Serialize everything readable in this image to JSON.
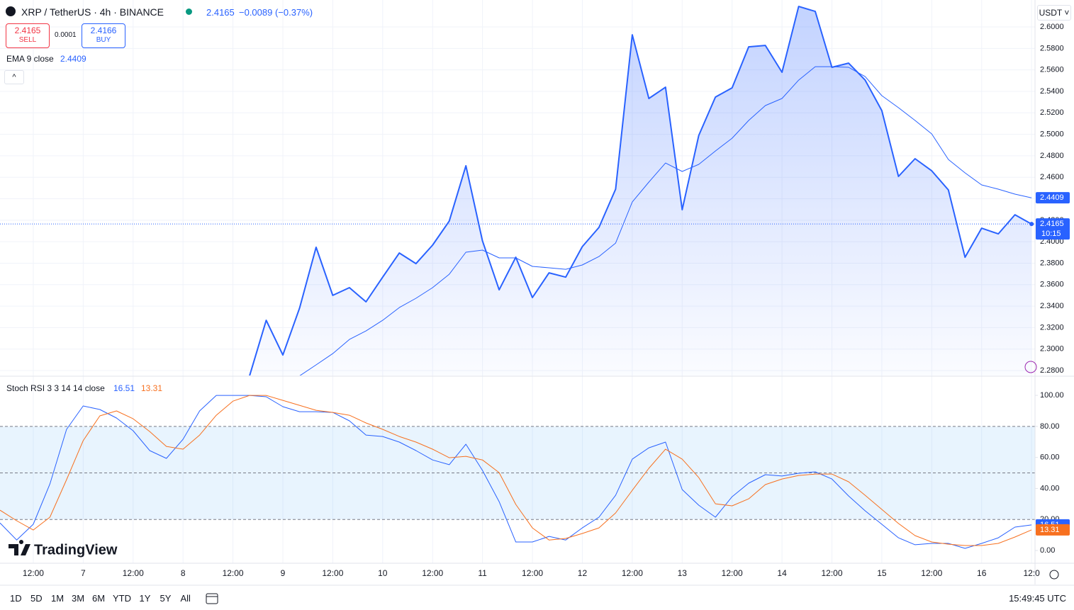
{
  "header": {
    "symbol": "XRP / TetherUS · 4h · BINANCE",
    "price": "2.4165",
    "change": "−0.0089 (−0.37%)",
    "sell_price": "2.4165",
    "sell": "SELL",
    "spread": "0.0001",
    "buy_price": "2.4166",
    "buy": "BUY",
    "currency": "USDT",
    "countdown": "10:15",
    "logo": "TradingView"
  },
  "toolbar": {
    "ranges": [
      "1D",
      "5D",
      "1M",
      "3M",
      "6M",
      "YTD",
      "1Y",
      "5Y",
      "All"
    ],
    "clock": "15:49:45 UTC"
  },
  "chart_data": [
    {
      "type": "line",
      "categories": [
        null,
        null,
        "12:00",
        null,
        null,
        "7",
        null,
        null,
        "12:00",
        null,
        null,
        "8",
        null,
        null,
        "12:00",
        null,
        null,
        "9",
        null,
        null,
        "12:00",
        null,
        null,
        "10",
        null,
        null,
        "12:00",
        null,
        null,
        "11",
        null,
        null,
        "12:00",
        null,
        null,
        "12",
        null,
        null,
        "12:00",
        null,
        null,
        "13",
        null,
        null,
        "12:00",
        null,
        null,
        "14",
        null,
        null,
        "12:00",
        null,
        null,
        "15",
        null,
        null,
        "12:00",
        null,
        null,
        "16",
        null,
        null,
        "12:0"
      ],
      "series": [
        {
          "color": "#2962ff",
          "values": [
            null,
            null,
            null,
            null,
            null,
            null,
            null,
            null,
            null,
            null,
            null,
            null,
            null,
            null,
            null,
            2.275,
            2.3268,
            2.2945,
            2.338,
            2.3948,
            2.35,
            2.3572,
            2.344,
            2.367,
            2.3895,
            2.3796,
            2.3968,
            2.4192,
            2.4707,
            2.4007,
            2.3552,
            2.3855,
            2.348,
            2.371,
            2.367,
            2.3954,
            2.4133,
            2.4489,
            2.5927,
            2.5334,
            2.5439,
            2.4298,
            2.499,
            2.5347,
            2.5433,
            2.5815,
            2.5828,
            2.5578,
            2.6191,
            2.6145,
            2.5624,
            2.5663,
            2.5505,
            2.5221,
            2.4608,
            2.4773,
            2.466,
            2.4482,
            2.3855,
            2.4126,
            2.4073,
            2.4251,
            2.4165
          ]
        },
        {
          "name": "EMA 9 close",
          "legend_value": "2.4409",
          "color": "#2962ff",
          "values": [
            null,
            null,
            null,
            null,
            null,
            null,
            null,
            null,
            null,
            null,
            null,
            null,
            null,
            null,
            null,
            null,
            null,
            null,
            2.275,
            2.2853,
            2.2958,
            2.309,
            2.3169,
            2.3268,
            2.3387,
            2.3473,
            2.3572,
            2.3697,
            2.3902,
            2.3922,
            2.3849,
            2.3849,
            2.377,
            2.3757,
            2.3743,
            2.3783,
            2.3862,
            2.3987,
            2.437,
            2.4555,
            2.4733,
            2.4654,
            2.472,
            2.4845,
            2.4964,
            2.5129,
            2.5268,
            2.5334,
            2.5505,
            2.563,
            2.563,
            2.5624,
            2.5538,
            2.536,
            2.5248,
            2.5129,
            2.5004,
            2.4766,
            2.4641,
            2.4529,
            2.4489,
            2.4443,
            2.4409
          ]
        }
      ],
      "ylim": [
        2.2754,
        2.6251
      ],
      "yticks": [
        {
          "value": 2.28,
          "label": "2.2800"
        },
        {
          "value": 2.3,
          "label": "2.3000"
        },
        {
          "value": 2.32,
          "label": "2.3200"
        },
        {
          "value": 2.34,
          "label": "2.3400"
        },
        {
          "value": 2.36,
          "label": "2.3600"
        },
        {
          "value": 2.38,
          "label": "2.3800"
        },
        {
          "value": 2.4,
          "label": "2.4000"
        },
        {
          "value": 2.42,
          "label": "2.4200"
        },
        {
          "value": 2.44,
          "label": "2.4400"
        },
        {
          "value": 2.46,
          "label": "2.4600"
        },
        {
          "value": 2.48,
          "label": "2.4800"
        },
        {
          "value": 2.5,
          "label": "2.5000"
        },
        {
          "value": 2.52,
          "label": "2.5200"
        },
        {
          "value": 2.54,
          "label": "2.5400"
        },
        {
          "value": 2.56,
          "label": "2.5600"
        },
        {
          "value": 2.58,
          "label": "2.5800"
        },
        {
          "value": 2.6,
          "label": "2.6000"
        }
      ],
      "grid": true
    },
    {
      "type": "line",
      "legend": "Stoch RSI 3 3 14 14 close",
      "series": [
        {
          "legend_value": "16.51",
          "color": "#2962ff",
          "values": [
            17.8,
            6.8,
            16.9,
            42.9,
            78.1,
            93.2,
            90.9,
            85.4,
            77.2,
            64.4,
            59.4,
            71.7,
            90,
            100,
            100,
            100,
            99.1,
            92.7,
            89.5,
            89.5,
            89,
            83.6,
            74.4,
            73.5,
            69.9,
            64.4,
            58.4,
            55.3,
            68.5,
            51.6,
            31.5,
            5.5,
            5.5,
            9.1,
            6.8,
            14.6,
            21.5,
            35.6,
            58.9,
            66.2,
            69.9,
            39.3,
            29.2,
            21.5,
            34.7,
            43.4,
            48.9,
            48,
            49.8,
            50.7,
            46.1,
            35.2,
            25.6,
            16.9,
            8.2,
            3.7,
            4.6,
            4.6,
            1.4,
            4.6,
            8.2,
            15.1,
            16.51
          ]
        },
        {
          "legend_value": "13.31",
          "color": "#f7701f",
          "values": [
            26,
            19.2,
            13.2,
            21.5,
            45.7,
            70.8,
            86.8,
            90,
            84.9,
            76.7,
            67.1,
            65.3,
            74.4,
            87.2,
            96.3,
            100,
            100,
            96.8,
            93.6,
            90.4,
            89,
            87.2,
            82.2,
            78.1,
            73.5,
            69.9,
            65.3,
            59.8,
            60.7,
            58.4,
            50.2,
            29.7,
            14.6,
            6.8,
            7.8,
            11,
            14.6,
            24.2,
            38.8,
            53,
            65.3,
            58.9,
            47,
            30.1,
            28.8,
            33.3,
            42.5,
            46.1,
            48.4,
            49.3,
            49.3,
            44.3,
            35.6,
            26.5,
            17.4,
            9.6,
            5.5,
            4.1,
            3.2,
            3.2,
            4.6,
            8.7,
            13.31
          ]
        }
      ],
      "levels": [
        80,
        50,
        20
      ],
      "ylim": [
        -8.2,
        111.9
      ],
      "yticks": [
        {
          "value": 0,
          "label": "0.00"
        },
        {
          "value": 20,
          "label": "20.00"
        },
        {
          "value": 40,
          "label": "40.00"
        },
        {
          "value": 60,
          "label": "60.00"
        },
        {
          "value": 80,
          "label": "80.00"
        },
        {
          "value": 100,
          "label": "100.00"
        }
      ]
    }
  ]
}
